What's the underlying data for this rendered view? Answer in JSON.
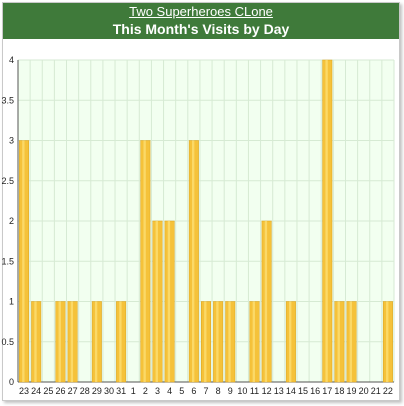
{
  "header": {
    "site_link": "Two Superheroes CLone",
    "title": "This Month's Visits by Day"
  },
  "colors": {
    "header_bg": "#3f7a3a",
    "bar": "#f5c23a",
    "bar_highlight": "#fde27a",
    "plot_bg": "#f2fff0",
    "grid": "#d6ead3"
  },
  "chart_data": {
    "type": "bar",
    "title": "This Month's Visits by Day",
    "xlabel": "",
    "ylabel": "",
    "ylim": [
      0,
      4
    ],
    "yticks": [
      "0",
      "0.5",
      "1",
      "1.5",
      "2",
      "2.5",
      "3",
      "3.5",
      "4"
    ],
    "grid": true,
    "categories": [
      "23",
      "24",
      "25",
      "26",
      "27",
      "28",
      "29",
      "30",
      "31",
      "1",
      "2",
      "3",
      "4",
      "5",
      "6",
      "7",
      "8",
      "9",
      "10",
      "11",
      "12",
      "13",
      "14",
      "15",
      "16",
      "17",
      "18",
      "19",
      "20",
      "21",
      "22"
    ],
    "values": [
      3,
      1,
      0,
      1,
      1,
      0,
      1,
      0,
      1,
      0,
      3,
      2,
      2,
      0,
      3,
      1,
      1,
      1,
      0,
      1,
      2,
      0,
      1,
      0,
      0,
      4,
      1,
      1,
      0,
      0,
      1
    ]
  }
}
